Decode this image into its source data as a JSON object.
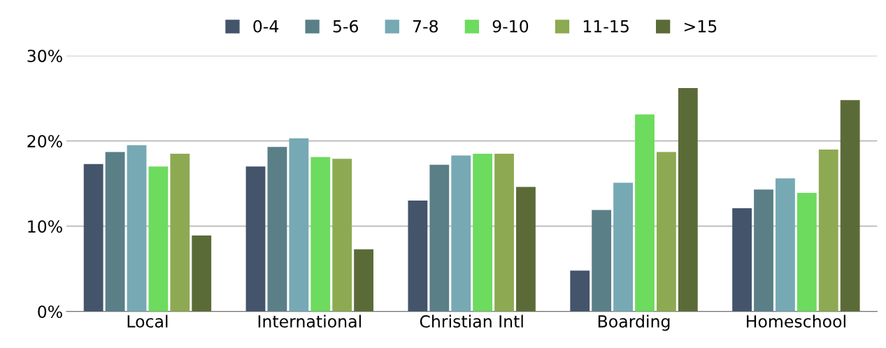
{
  "chart_data": {
    "type": "bar",
    "categories": [
      "Local",
      "International",
      "Christian Intl",
      "Boarding",
      "Homeschool"
    ],
    "series": [
      {
        "name": "0-4",
        "color": "#44546a",
        "values": [
          17.3,
          17.0,
          13.0,
          4.8,
          12.1
        ]
      },
      {
        "name": "5-6",
        "color": "#5a7f87",
        "values": [
          18.7,
          19.3,
          17.2,
          11.9,
          14.3
        ]
      },
      {
        "name": "7-8",
        "color": "#76a9b4",
        "values": [
          19.5,
          20.3,
          18.3,
          15.1,
          15.6
        ]
      },
      {
        "name": "9-10",
        "color": "#6ddb5e",
        "values": [
          17.0,
          18.1,
          18.5,
          23.1,
          13.9
        ]
      },
      {
        "name": "11-15",
        "color": "#8daa52",
        "values": [
          18.5,
          17.9,
          18.5,
          18.7,
          19.0
        ]
      },
      {
        "name": ">15",
        "color": "#5b6b38",
        "values": [
          8.9,
          7.3,
          14.6,
          26.2,
          24.8
        ]
      }
    ],
    "ylim": [
      0,
      30
    ],
    "yticks": [
      {
        "value": 0,
        "label": "0%"
      },
      {
        "value": 10,
        "label": "10%"
      },
      {
        "value": 20,
        "label": "20%"
      },
      {
        "value": 30,
        "label": "30%"
      }
    ],
    "grid": "y",
    "legend": "top"
  }
}
